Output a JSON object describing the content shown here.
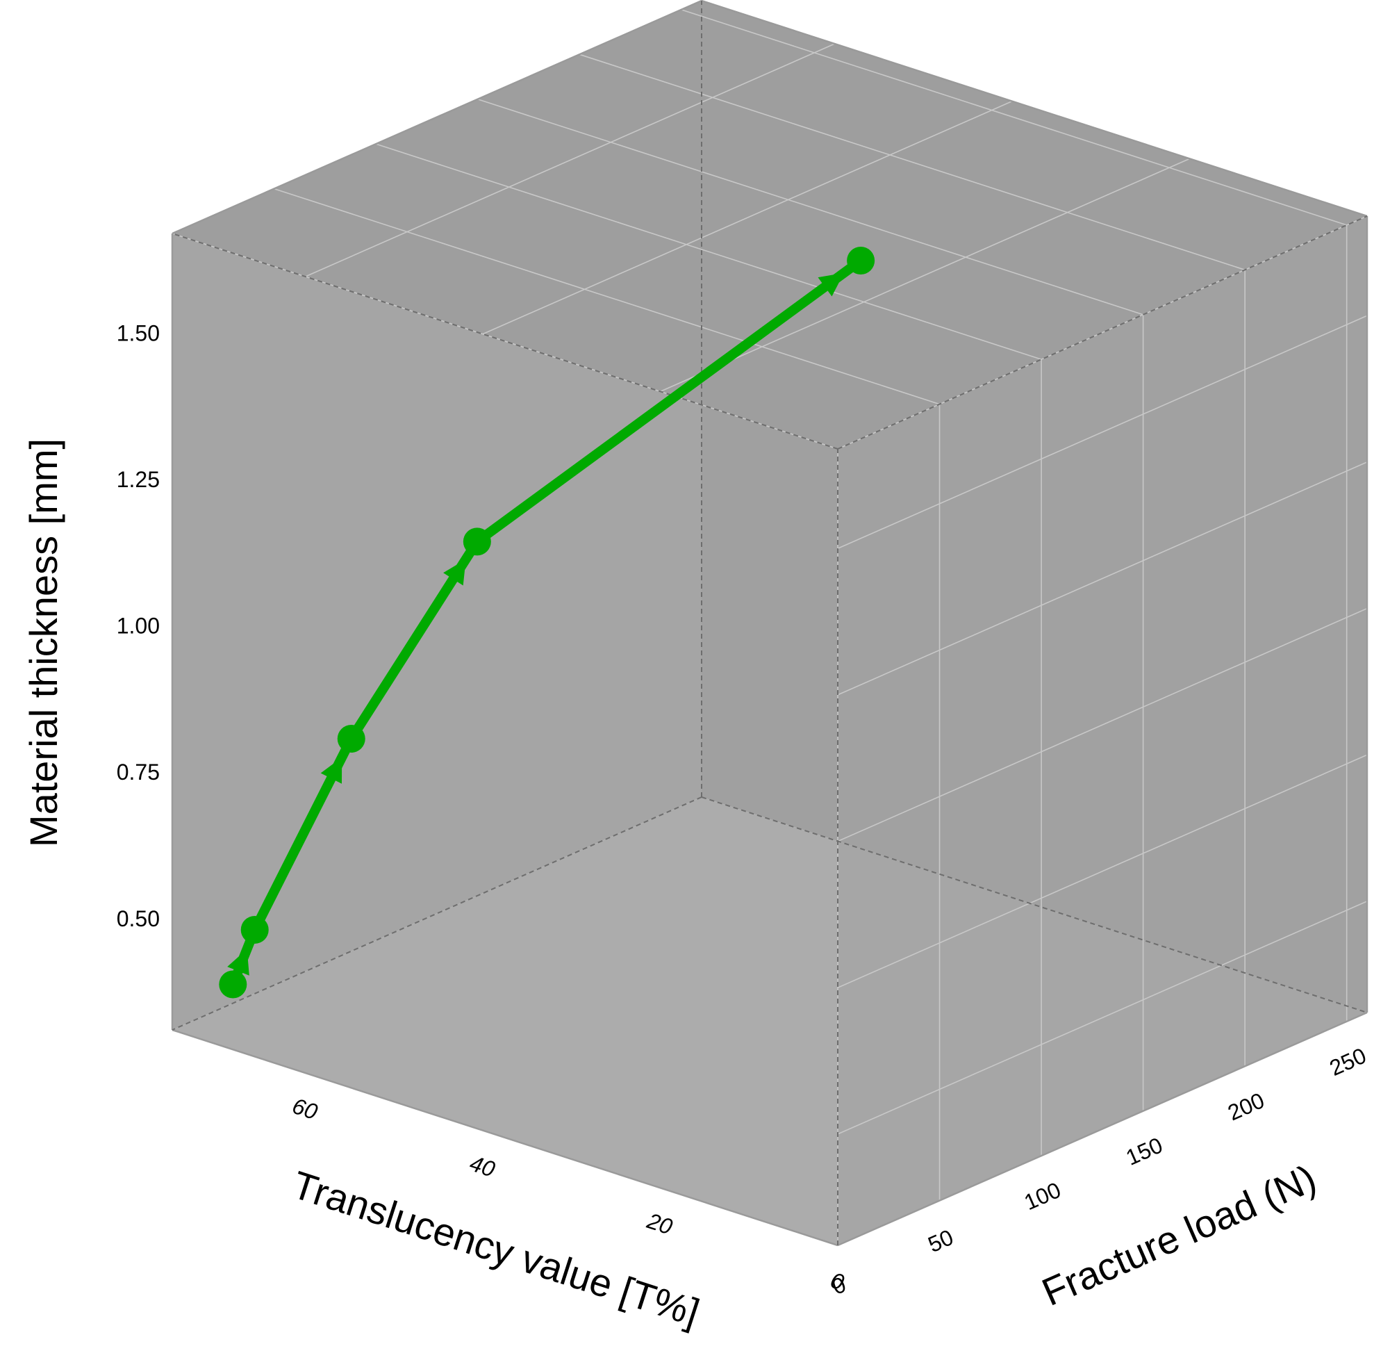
{
  "chart_data": {
    "type": "line",
    "subtype": "3d-line",
    "title": "",
    "axes": {
      "x": {
        "label": "Translucency value [T%]",
        "ticks": [
          "0",
          "20",
          "40",
          "60"
        ],
        "range": [
          0,
          75
        ]
      },
      "y": {
        "label": "Fracture load (N)",
        "ticks": [
          "0",
          "50",
          "100",
          "150",
          "200",
          "250"
        ],
        "range": [
          0,
          260
        ]
      },
      "z": {
        "label": "Material thickness [mm]",
        "ticks": [
          "0.50",
          "0.75",
          "1.00",
          "1.25",
          "1.50"
        ],
        "range": [
          0.31,
          1.67
        ]
      }
    },
    "grid": true,
    "series": [
      {
        "color": "#00aa00",
        "points": [
          {
            "x": 70,
            "y": 8,
            "z": 0.4
          },
          {
            "x": 68,
            "y": 10,
            "z": 0.5
          },
          {
            "x": 64,
            "y": 40,
            "z": 0.8
          },
          {
            "x": 59,
            "y": 80,
            "z": 1.1
          },
          {
            "x": 41,
            "y": 190,
            "z": 1.5
          }
        ]
      }
    ],
    "colors": {
      "frame": "#9a9a9a",
      "back_panel": "#a5a5a5",
      "side_panel": "#a0a0a0",
      "floor_panel": "#acacac",
      "grid": "#c8c8c8",
      "line": "#00aa00"
    }
  }
}
